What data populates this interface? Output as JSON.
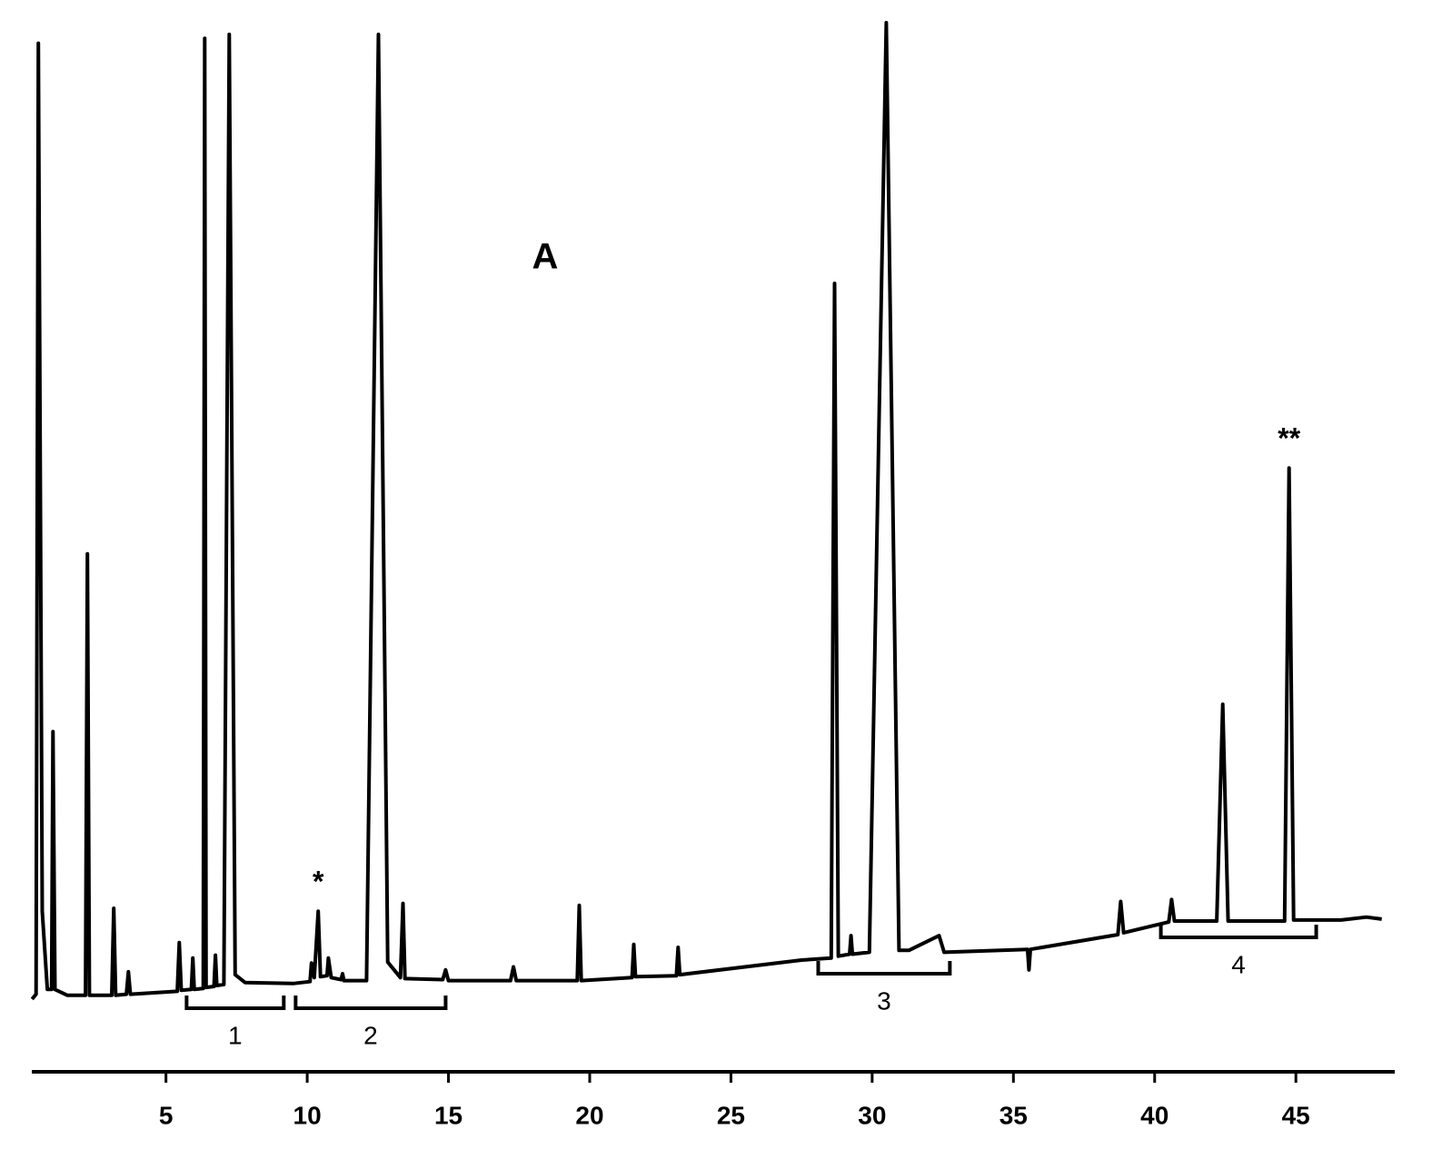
{
  "chart_data": {
    "type": "line",
    "title": "A",
    "x": [
      0.26,
      0.4,
      0.48,
      0.62,
      0.8,
      0.95,
      1.0,
      1.07,
      1.5,
      2.15,
      2.22,
      2.29,
      3.08,
      3.15,
      3.22,
      3.6,
      3.67,
      3.74,
      5.4,
      5.47,
      5.54,
      5.9,
      5.95,
      6.0,
      6.32,
      6.37,
      6.42,
      6.7,
      6.75,
      6.8,
      7.05,
      7.24,
      7.45,
      7.8,
      9.5,
      10.1,
      10.15,
      10.25,
      10.39,
      10.47,
      10.7,
      10.75,
      10.85,
      11.2,
      11.25,
      11.3,
      12.1,
      12.52,
      12.85,
      13.3,
      13.39,
      13.46,
      14.8,
      14.9,
      15.0,
      17.2,
      17.3,
      17.4,
      19.56,
      19.63,
      19.7,
      21.5,
      21.56,
      21.62,
      23.07,
      23.13,
      23.19,
      27.5,
      28.55,
      28.67,
      28.8,
      29.2,
      29.25,
      29.3,
      29.9,
      30.5,
      30.95,
      31.3,
      32.37,
      32.55,
      35.5,
      35.55,
      35.6,
      38.7,
      38.8,
      38.9,
      40.5,
      40.6,
      40.7,
      42.2,
      42.41,
      42.6,
      44.6,
      44.76,
      44.92,
      46.6,
      47.5,
      48.04
    ],
    "series": [
      {
        "color": "#000000",
        "values": [
          0,
          0.5,
          97.9,
          9,
          1,
          1,
          27.4,
          1,
          0.4,
          0.4,
          45.6,
          0.4,
          0.4,
          9.3,
          0.4,
          0.5,
          2.8,
          0.5,
          0.8,
          5.8,
          0.9,
          1,
          4.2,
          1,
          1.1,
          98.4,
          1.2,
          1.3,
          4.5,
          1.4,
          1.5,
          98.8,
          2.5,
          1.7,
          1.6,
          1.8,
          3.7,
          2.2,
          9.0,
          2.3,
          2.4,
          4.2,
          2.2,
          2.0,
          2.6,
          1.9,
          1.9,
          98.8,
          3.8,
          2.2,
          9.8,
          2.1,
          2.0,
          3.0,
          1.9,
          1.9,
          3.3,
          1.9,
          1.9,
          9.6,
          1.9,
          2.2,
          5.6,
          2.3,
          2.4,
          5.3,
          2.5,
          4.0,
          4.2,
          73.3,
          4.4,
          4.6,
          6.5,
          4.6,
          4.8,
          100,
          5.0,
          5.0,
          6.5,
          4.8,
          5.1,
          3.0,
          5.1,
          6.6,
          10.0,
          6.8,
          7.9,
          10.2,
          8.0,
          8.0,
          30.2,
          8.0,
          8.0,
          54.4,
          8.1,
          8.1,
          8.4,
          8.2
        ]
      }
    ],
    "xlim": [
      0.25,
      48.5
    ],
    "xticks": [
      5,
      10,
      15,
      20,
      25,
      30,
      35,
      40,
      45
    ],
    "ylim": [
      0,
      100
    ],
    "annotations": [
      {
        "text": "*",
        "x": 10.39
      },
      {
        "text": "**",
        "x": 44.76
      }
    ],
    "brackets": [
      {
        "label": "1",
        "x": [
          5.73,
          9.17
        ]
      },
      {
        "label": "2",
        "x": [
          9.59,
          14.9
        ]
      },
      {
        "label": "3",
        "x": [
          28.09,
          32.75
        ]
      },
      {
        "label": "4",
        "x": [
          40.22,
          45.72
        ]
      }
    ]
  }
}
